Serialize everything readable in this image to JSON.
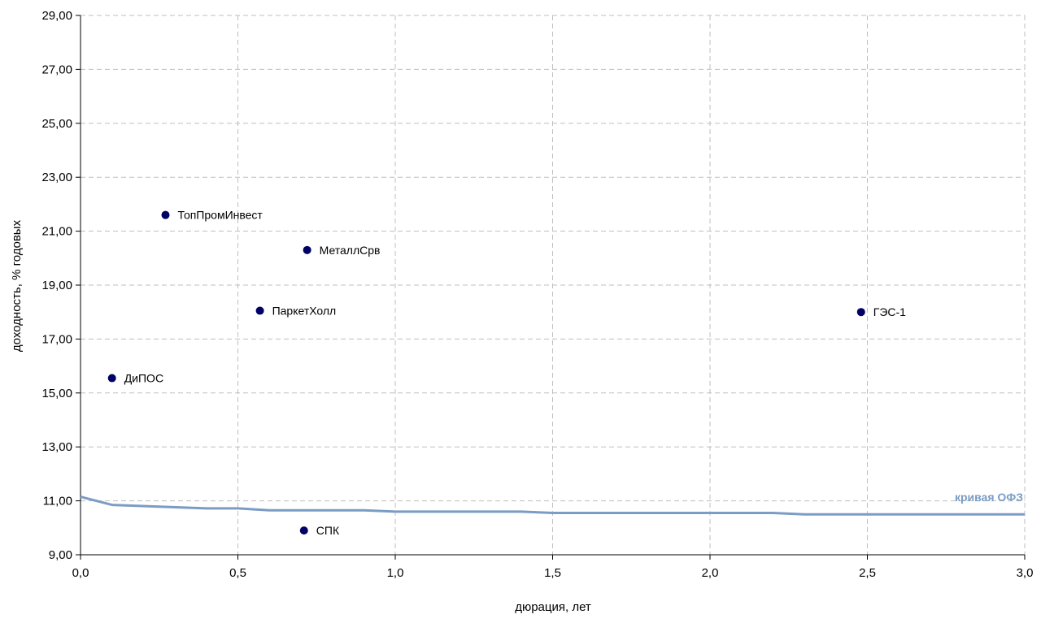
{
  "chart_data": {
    "type": "scatter",
    "xlabel": "дюрация, лет",
    "ylabel": "доходность, % годовых",
    "xlim": [
      0,
      3.0
    ],
    "ylim": [
      9,
      29
    ],
    "x_ticks": [
      0,
      0.5,
      1.0,
      1.5,
      2.0,
      2.5,
      3.0
    ],
    "x_tick_labels": [
      "0,0",
      "0,5",
      "1,0",
      "1,5",
      "2,0",
      "2,5",
      "3,0"
    ],
    "y_ticks": [
      9,
      11,
      13,
      15,
      17,
      19,
      21,
      23,
      25,
      27,
      29
    ],
    "y_tick_labels": [
      "9,00",
      "11,00",
      "13,00",
      "15,00",
      "17,00",
      "19,00",
      "21,00",
      "23,00",
      "25,00",
      "27,00",
      "29,00"
    ],
    "grid": true,
    "points": [
      {
        "label": "ТопПромИнвест",
        "x": 0.27,
        "y": 21.6
      },
      {
        "label": "МеталлСрв",
        "x": 0.72,
        "y": 20.3
      },
      {
        "label": "ПаркетХолл",
        "x": 0.57,
        "y": 18.05
      },
      {
        "label": "ГЭС-1",
        "x": 2.48,
        "y": 18.0
      },
      {
        "label": "ДиПОС",
        "x": 0.1,
        "y": 15.55
      },
      {
        "label": "СПК",
        "x": 0.71,
        "y": 9.9
      }
    ],
    "series": [
      {
        "name": "кривая ОФЗ",
        "type": "line",
        "x": [
          0.0,
          0.1,
          0.4,
          0.5,
          0.6,
          0.9,
          1.0,
          1.4,
          1.5,
          2.2,
          2.3,
          3.0
        ],
        "y": [
          11.15,
          10.85,
          10.72,
          10.72,
          10.65,
          10.65,
          10.6,
          10.6,
          10.55,
          10.55,
          10.5,
          10.5
        ]
      }
    ],
    "colors": {
      "points": "#000066",
      "curve": "#7B9CC4",
      "grid": "#BFBFBF",
      "axis": "#000000"
    }
  }
}
